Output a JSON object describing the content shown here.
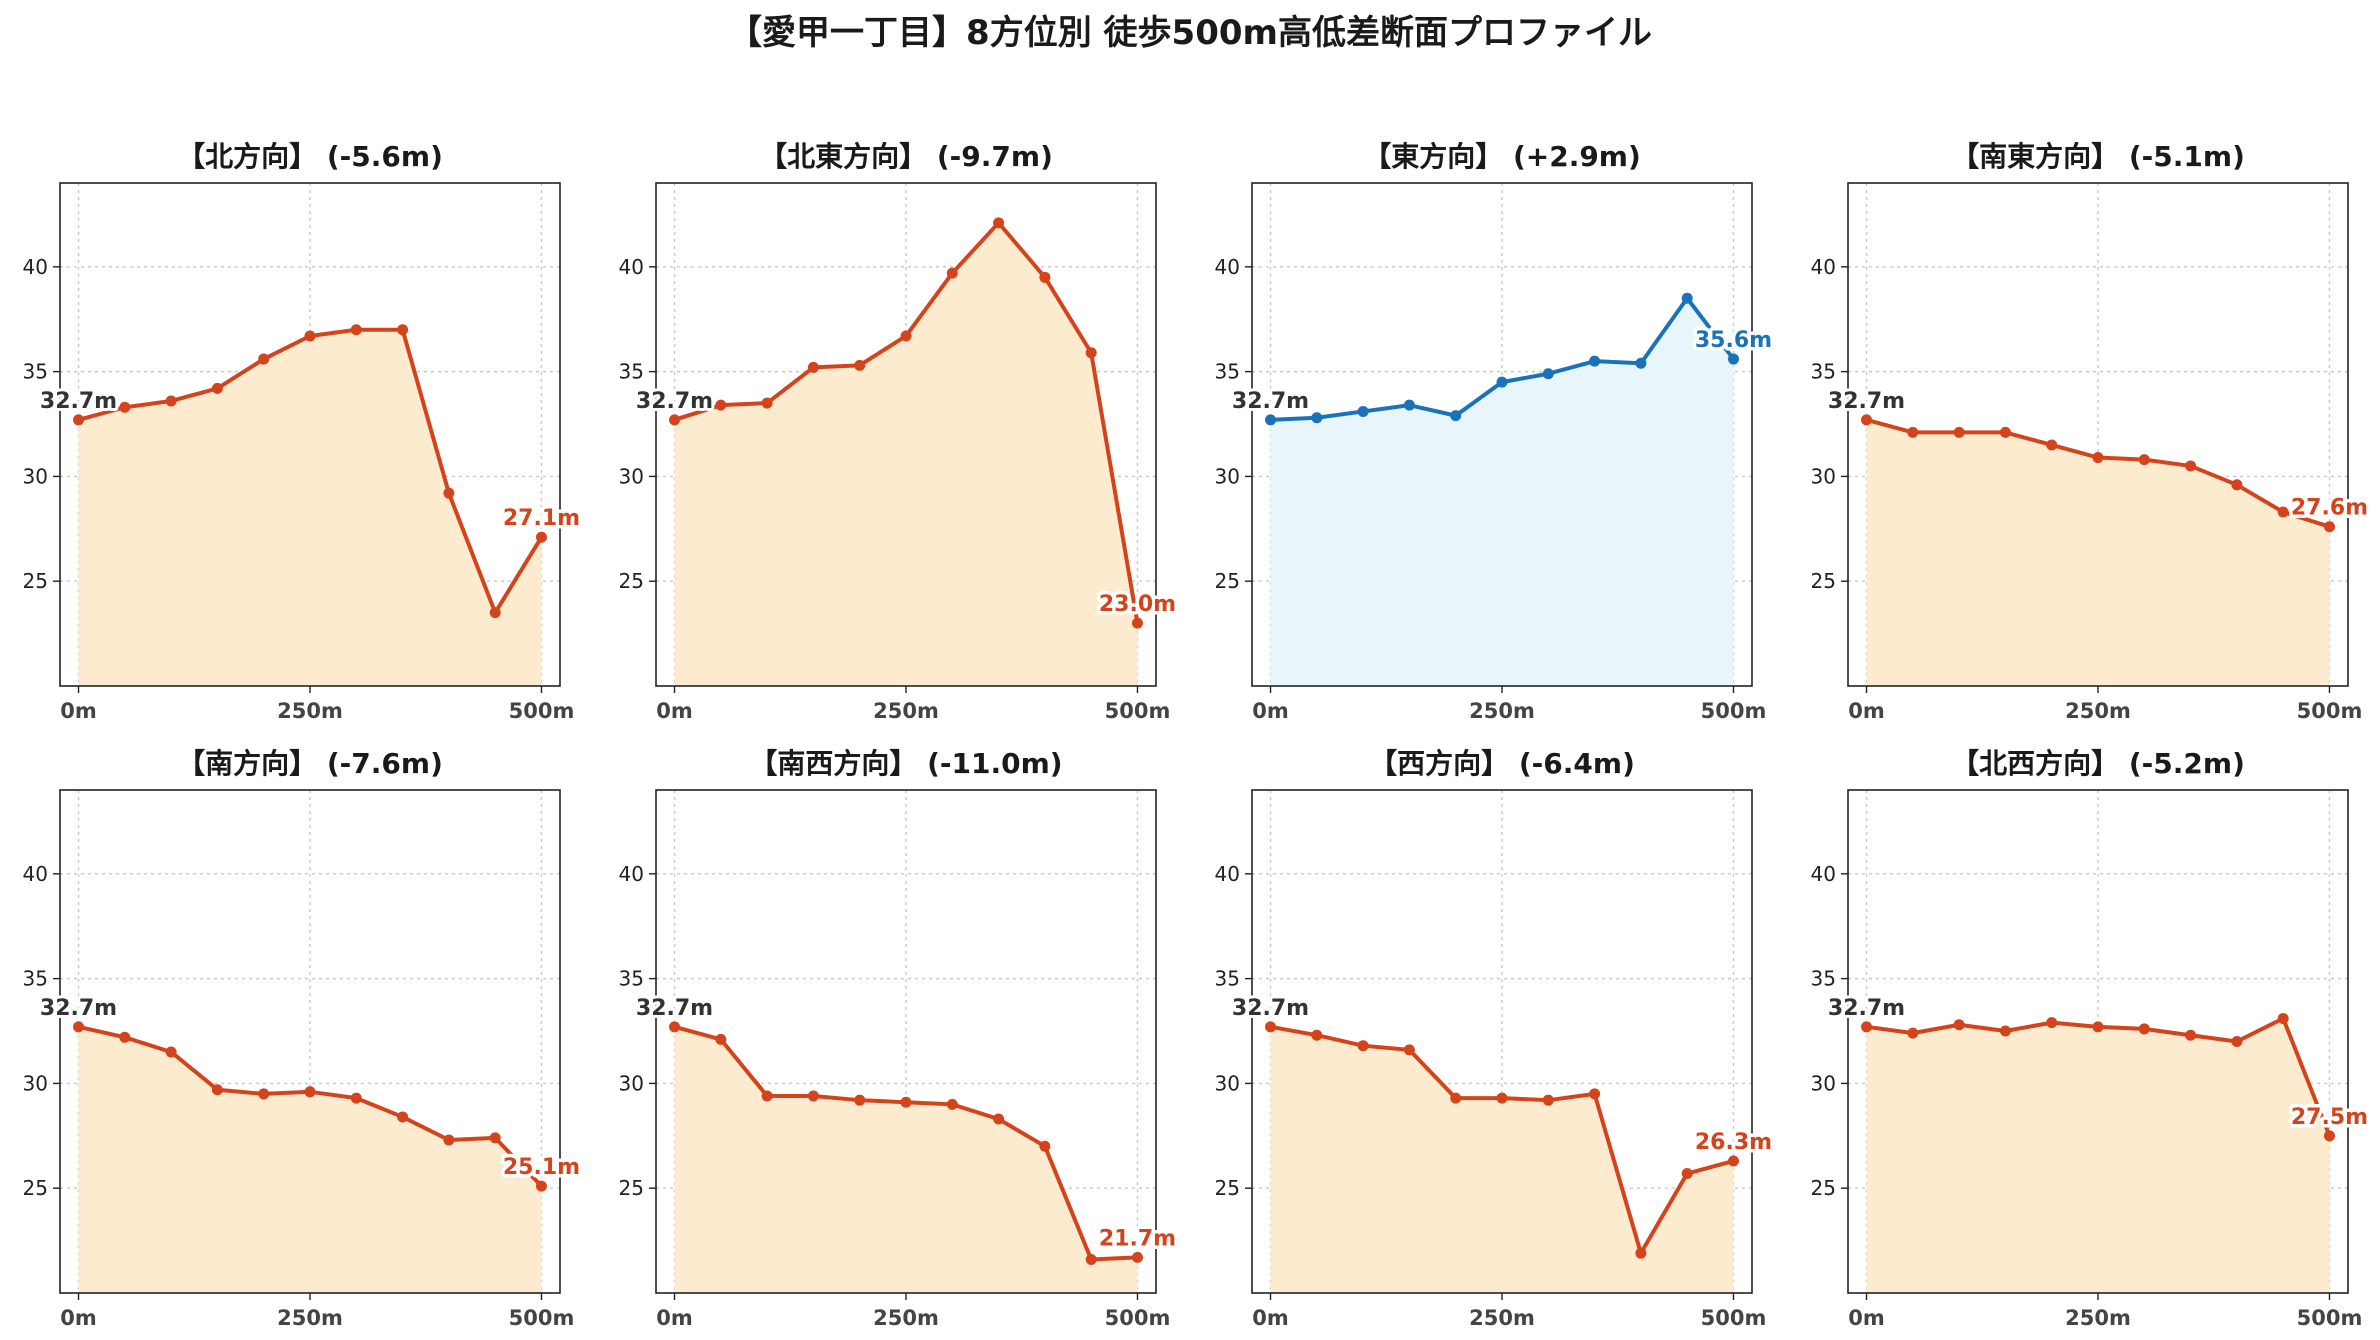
{
  "title": "【愛甲一丁目】8方位別 徒歩500m高低差断面プロファイル",
  "colors": {
    "down_line": "#d4441c",
    "down_fill": "#fdebd0",
    "up_line": "#1a73b8",
    "up_fill": "#e8f5fb",
    "start_label": "#333333",
    "grid": "#c8c8c8"
  },
  "chart_data": [
    {
      "type": "area",
      "title": "【北方向】 (-5.6m)",
      "trend": "down",
      "x": [
        0,
        50,
        100,
        150,
        200,
        250,
        300,
        350,
        400,
        450,
        500
      ],
      "y": [
        32.7,
        33.3,
        33.6,
        34.2,
        35.6,
        36.7,
        37.0,
        37.0,
        29.2,
        23.5,
        27.1
      ],
      "start_label": "32.7m",
      "end_label": "27.1m",
      "xticks": [
        "0m",
        "250m",
        "500m"
      ],
      "yticks": [
        "25",
        "30",
        "35",
        "40"
      ],
      "xlim": [
        -20,
        520
      ],
      "ylim": [
        20,
        44
      ],
      "grid": true
    },
    {
      "type": "area",
      "title": "【北東方向】 (-9.7m)",
      "trend": "down",
      "x": [
        0,
        50,
        100,
        150,
        200,
        250,
        300,
        350,
        400,
        450,
        500
      ],
      "y": [
        32.7,
        33.4,
        33.5,
        35.2,
        35.3,
        36.7,
        39.7,
        42.1,
        39.5,
        35.9,
        23.0
      ],
      "start_label": "32.7m",
      "end_label": "23.0m",
      "xticks": [
        "0m",
        "250m",
        "500m"
      ],
      "yticks": [
        "25",
        "30",
        "35",
        "40"
      ],
      "xlim": [
        -20,
        520
      ],
      "ylim": [
        20,
        44
      ],
      "grid": true
    },
    {
      "type": "area",
      "title": "【東方向】 (+2.9m)",
      "trend": "up",
      "x": [
        0,
        50,
        100,
        150,
        200,
        250,
        300,
        350,
        400,
        450,
        500
      ],
      "y": [
        32.7,
        32.8,
        33.1,
        33.4,
        32.9,
        34.5,
        34.9,
        35.5,
        35.4,
        38.5,
        35.6
      ],
      "start_label": "32.7m",
      "end_label": "35.6m",
      "xticks": [
        "0m",
        "250m",
        "500m"
      ],
      "yticks": [
        "25",
        "30",
        "35",
        "40"
      ],
      "xlim": [
        -20,
        520
      ],
      "ylim": [
        20,
        44
      ],
      "grid": true
    },
    {
      "type": "area",
      "title": "【南東方向】 (-5.1m)",
      "trend": "down",
      "x": [
        0,
        50,
        100,
        150,
        200,
        250,
        300,
        350,
        400,
        450,
        500
      ],
      "y": [
        32.7,
        32.1,
        32.1,
        32.1,
        31.5,
        30.9,
        30.8,
        30.5,
        29.6,
        28.3,
        27.6
      ],
      "start_label": "32.7m",
      "end_label": "27.6m",
      "xticks": [
        "0m",
        "250m",
        "500m"
      ],
      "yticks": [
        "25",
        "30",
        "35",
        "40"
      ],
      "xlim": [
        -20,
        520
      ],
      "ylim": [
        20,
        44
      ],
      "grid": true
    },
    {
      "type": "area",
      "title": "【南方向】 (-7.6m)",
      "trend": "down",
      "x": [
        0,
        50,
        100,
        150,
        200,
        250,
        300,
        350,
        400,
        450,
        500
      ],
      "y": [
        32.7,
        32.2,
        31.5,
        29.7,
        29.5,
        29.6,
        29.3,
        28.4,
        27.3,
        27.4,
        25.1
      ],
      "start_label": "32.7m",
      "end_label": "25.1m",
      "xticks": [
        "0m",
        "250m",
        "500m"
      ],
      "yticks": [
        "25",
        "30",
        "35",
        "40"
      ],
      "xlim": [
        -20,
        520
      ],
      "ylim": [
        20,
        44
      ],
      "grid": true
    },
    {
      "type": "area",
      "title": "【南西方向】 (-11.0m)",
      "trend": "down",
      "x": [
        0,
        50,
        100,
        150,
        200,
        250,
        300,
        350,
        400,
        450,
        500
      ],
      "y": [
        32.7,
        32.1,
        29.4,
        29.4,
        29.2,
        29.1,
        29.0,
        28.3,
        27.0,
        21.6,
        21.7
      ],
      "start_label": "32.7m",
      "end_label": "21.7m",
      "xticks": [
        "0m",
        "250m",
        "500m"
      ],
      "yticks": [
        "25",
        "30",
        "35",
        "40"
      ],
      "xlim": [
        -20,
        520
      ],
      "ylim": [
        20,
        44
      ],
      "grid": true
    },
    {
      "type": "area",
      "title": "【西方向】 (-6.4m)",
      "trend": "down",
      "x": [
        0,
        50,
        100,
        150,
        200,
        250,
        300,
        350,
        400,
        450,
        500
      ],
      "y": [
        32.7,
        32.3,
        31.8,
        31.6,
        29.3,
        29.3,
        29.2,
        29.5,
        21.9,
        25.7,
        26.3
      ],
      "start_label": "32.7m",
      "end_label": "26.3m",
      "xticks": [
        "0m",
        "250m",
        "500m"
      ],
      "yticks": [
        "25",
        "30",
        "35",
        "40"
      ],
      "xlim": [
        -20,
        520
      ],
      "ylim": [
        20,
        44
      ],
      "grid": true
    },
    {
      "type": "area",
      "title": "【北西方向】 (-5.2m)",
      "trend": "down",
      "x": [
        0,
        50,
        100,
        150,
        200,
        250,
        300,
        350,
        400,
        450,
        500
      ],
      "y": [
        32.7,
        32.4,
        32.8,
        32.5,
        32.9,
        32.7,
        32.6,
        32.3,
        32.0,
        33.1,
        27.5
      ],
      "start_label": "32.7m",
      "end_label": "27.5m",
      "xticks": [
        "0m",
        "250m",
        "500m"
      ],
      "yticks": [
        "25",
        "30",
        "35",
        "40"
      ],
      "xlim": [
        -20,
        520
      ],
      "ylim": [
        20,
        44
      ],
      "grid": true
    }
  ]
}
